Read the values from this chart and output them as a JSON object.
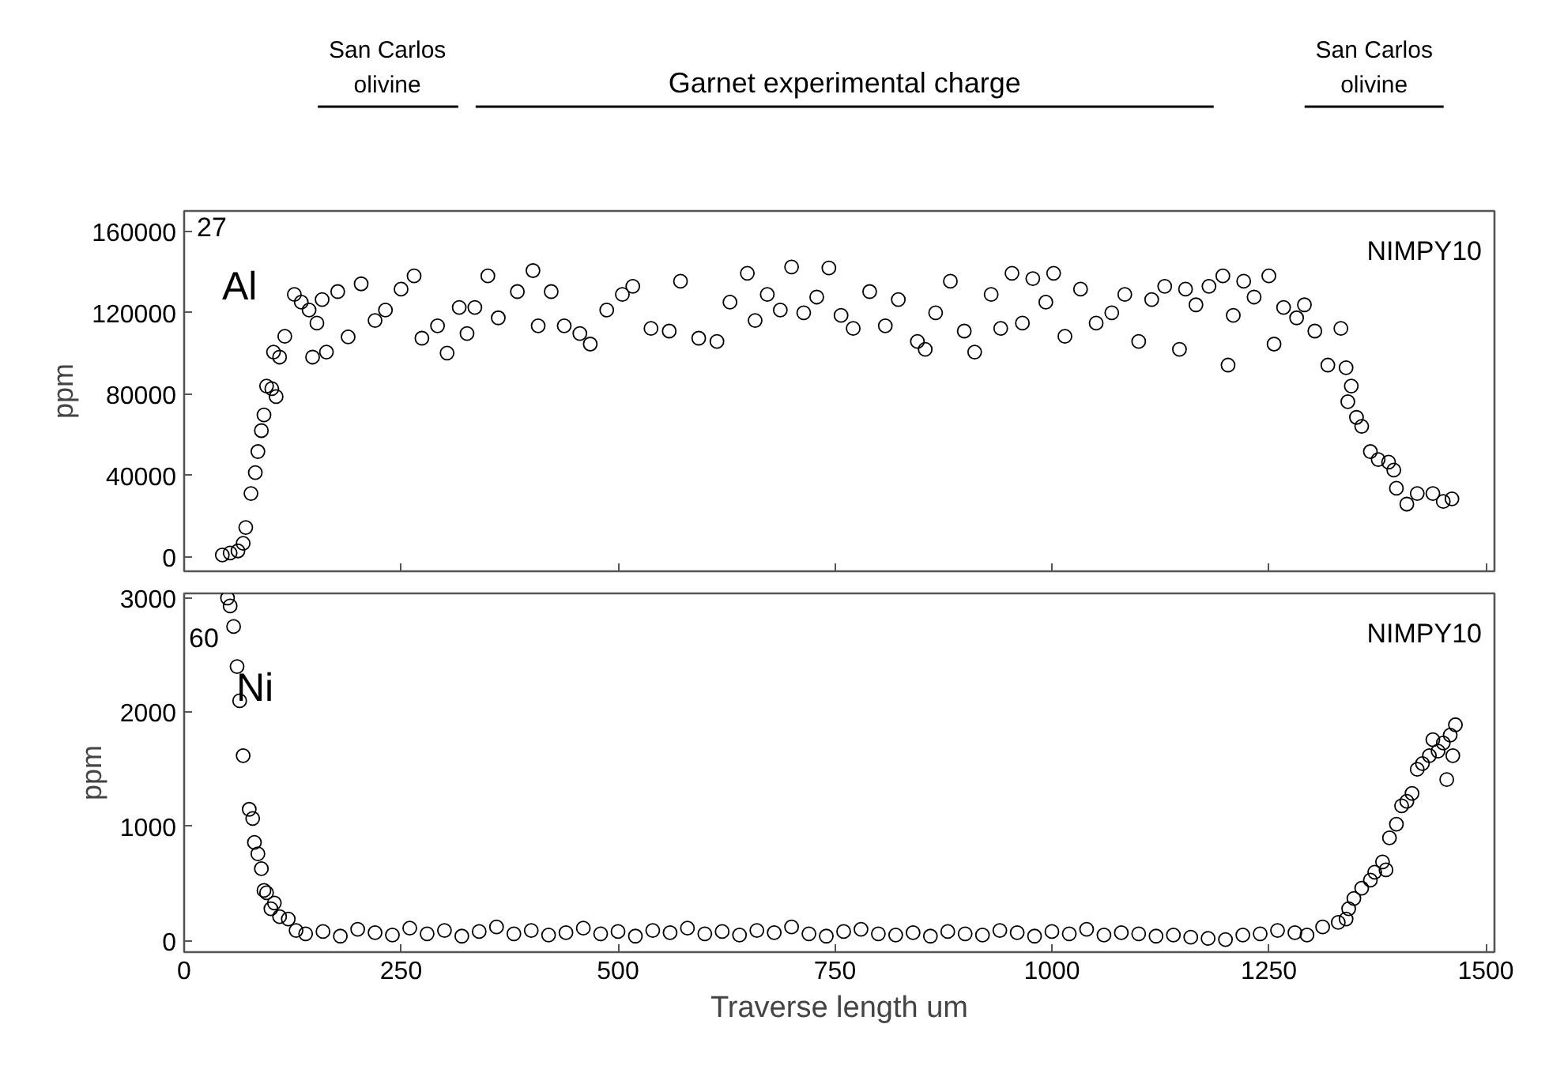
{
  "chart_data": [
    {
      "type": "scatter",
      "ylabel": "ppm",
      "annotations": [
        "27",
        "Al",
        "NIMPY10",
        "San Carlos\nolivine",
        "Garnet experimental charge",
        "San Carlos\nolivine"
      ],
      "xlim": [
        0,
        1510
      ],
      "xticks": [
        0,
        250,
        500,
        750,
        1000,
        1250,
        1500
      ],
      "ylim": [
        -7000,
        170000
      ],
      "yticks": [
        0,
        40000,
        80000,
        120000,
        160000
      ],
      "tick_labels": "y",
      "marker": "circle",
      "series": [
        {
          "color": "#000000",
          "x": [
            44,
            53,
            62,
            68,
            71,
            77,
            82,
            85,
            89,
            92,
            95,
            101,
            103,
            106,
            110,
            116,
            127,
            135,
            144,
            148,
            153,
            159,
            164,
            177,
            189,
            204,
            220,
            232,
            250,
            265,
            274,
            292,
            303,
            317,
            326,
            335,
            350,
            362,
            384,
            402,
            408,
            423,
            438,
            456,
            468,
            487,
            505,
            517,
            538,
            559,
            572,
            593,
            614,
            629,
            649,
            658,
            672,
            687,
            700,
            714,
            729,
            743,
            757,
            771,
            790,
            808,
            823,
            845,
            854,
            866,
            883,
            899,
            911,
            930,
            941,
            954,
            966,
            978,
            993,
            1002,
            1015,
            1033,
            1051,
            1069,
            1084,
            1100,
            1115,
            1130,
            1147,
            1154,
            1166,
            1181,
            1197,
            1203,
            1209,
            1221,
            1233,
            1250,
            1256,
            1267,
            1282,
            1291,
            1303,
            1318,
            1333,
            1339,
            1341,
            1345,
            1351,
            1357,
            1367,
            1376,
            1388,
            1394,
            1397,
            1409,
            1421,
            1439,
            1451,
            1461
          ],
          "values": [
            1000,
            2000,
            3000,
            6700,
            14500,
            31200,
            41500,
            51800,
            62100,
            69800,
            84000,
            82700,
            100700,
            78800,
            98200,
            108400,
            129000,
            125200,
            121300,
            98200,
            114900,
            126500,
            100700,
            130400,
            108100,
            134200,
            116200,
            121300,
            131600,
            138100,
            107500,
            113600,
            100200,
            122600,
            109800,
            122600,
            138100,
            117500,
            130400,
            140700,
            113600,
            130400,
            113600,
            109800,
            104600,
            121300,
            129000,
            133000,
            112300,
            111000,
            135500,
            107500,
            105900,
            125200,
            139400,
            116200,
            129000,
            121300,
            142500,
            120000,
            127700,
            142000,
            118700,
            112300,
            130400,
            113600,
            126500,
            105900,
            102000,
            120000,
            135500,
            111000,
            100700,
            129000,
            112300,
            139400,
            114900,
            136800,
            125200,
            139400,
            108400,
            131600,
            114900,
            120000,
            129000,
            105900,
            126500,
            133000,
            102000,
            131600,
            123900,
            133000,
            138100,
            94300,
            118700,
            135500,
            127700,
            138100,
            104600,
            122600,
            117500,
            123900,
            111000,
            94300,
            112300,
            93000,
            76300,
            84000,
            68600,
            64200,
            51800,
            47900,
            46600,
            42700,
            33800,
            26000,
            31200,
            31200,
            27300,
            28600
          ]
        }
      ]
    },
    {
      "type": "scatter",
      "ylabel": "ppm",
      "xlabel": "Traverse length um",
      "annotations": [
        "60",
        "Ni",
        "NIMPY10"
      ],
      "xlim": [
        0,
        1510
      ],
      "xticks": [
        0,
        250,
        500,
        750,
        1000,
        1250,
        1500
      ],
      "ylim": [
        -100,
        3040
      ],
      "yticks": [
        0,
        1000,
        2000,
        3000
      ],
      "marker": "circle",
      "series": [
        {
          "color": "#000000",
          "x": [
            50,
            53,
            57,
            61,
            64,
            68,
            75,
            79,
            81,
            85,
            89,
            92,
            95,
            100,
            104,
            110,
            120,
            129,
            140,
            160,
            180,
            200,
            220,
            240,
            260,
            280,
            300,
            320,
            340,
            360,
            380,
            400,
            420,
            440,
            460,
            480,
            500,
            520,
            540,
            560,
            580,
            600,
            620,
            640,
            660,
            680,
            700,
            720,
            740,
            760,
            780,
            800,
            820,
            840,
            860,
            880,
            900,
            920,
            940,
            960,
            980,
            1000,
            1020,
            1040,
            1060,
            1080,
            1100,
            1120,
            1140,
            1160,
            1180,
            1200,
            1220,
            1240,
            1260,
            1280,
            1294,
            1312,
            1330,
            1339,
            1342,
            1348,
            1357,
            1367,
            1372,
            1381,
            1385,
            1389,
            1397,
            1403,
            1409,
            1415,
            1421,
            1427,
            1435,
            1439,
            1445,
            1451,
            1455,
            1459,
            1462,
            1465
          ],
          "values": [
            3000,
            2930,
            2750,
            2400,
            2100,
            1620,
            1150,
            1070,
            860,
            760,
            630,
            440,
            420,
            280,
            330,
            210,
            190,
            90,
            60,
            80,
            40,
            100,
            70,
            50,
            110,
            60,
            90,
            40,
            80,
            120,
            60,
            90,
            50,
            70,
            110,
            60,
            80,
            40,
            90,
            70,
            110,
            60,
            80,
            50,
            90,
            70,
            120,
            60,
            40,
            80,
            100,
            60,
            50,
            70,
            40,
            80,
            60,
            50,
            90,
            70,
            40,
            80,
            60,
            100,
            50,
            70,
            60,
            40,
            50,
            30,
            20,
            10,
            50,
            60,
            90,
            70,
            50,
            120,
            160,
            190,
            280,
            370,
            460,
            530,
            600,
            690,
            620,
            900,
            1020,
            1180,
            1220,
            1290,
            1500,
            1550,
            1620,
            1760,
            1660,
            1730,
            1410,
            1800,
            1620,
            1890
          ]
        }
      ]
    }
  ]
}
